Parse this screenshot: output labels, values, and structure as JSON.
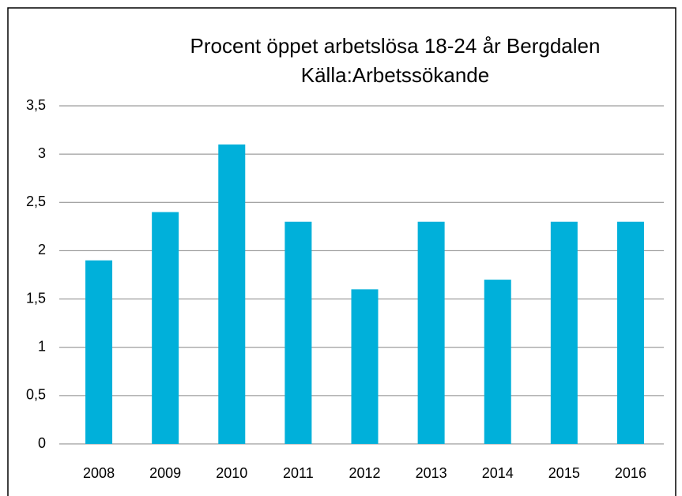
{
  "chart_data": {
    "type": "bar",
    "title": "Procent öppet arbetslösa 18-24 år Bergdalen",
    "subtitle": "Källa:Arbetssökande",
    "categories": [
      "2008",
      "2009",
      "2010",
      "2011",
      "2012",
      "2013",
      "2014",
      "2015",
      "2016"
    ],
    "values": [
      1.9,
      2.4,
      3.1,
      2.3,
      1.6,
      2.3,
      1.7,
      2.3,
      2.3
    ],
    "color": "#00b0da",
    "ylim": [
      0,
      3.5
    ],
    "yticks": [
      0,
      {
        "value": 0.5,
        "label": "0,5"
      },
      1,
      {
        "value": 1.5,
        "label": "1,5"
      },
      2,
      {
        "value": 2.5,
        "label": "2,5"
      },
      3,
      {
        "value": 3.5,
        "label": "3,5"
      }
    ],
    "grid": true
  }
}
